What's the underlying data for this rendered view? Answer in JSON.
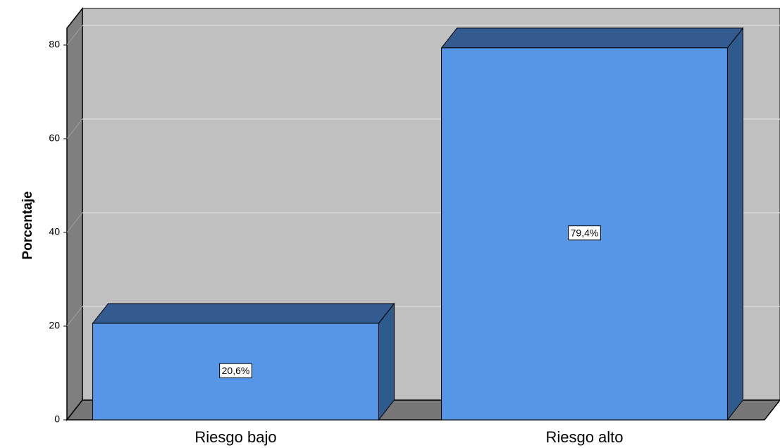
{
  "chart_data": {
    "type": "bar",
    "y_label": "Porcentaje",
    "categories": [
      "Riesgo bajo",
      "Riesgo alto"
    ],
    "values": [
      20.6,
      79.4
    ],
    "value_labels": [
      "20,6%",
      "79,4%"
    ],
    "color": "#5596e6",
    "ylim": [
      0,
      83.6
    ],
    "yticks": [
      0,
      20,
      40,
      60,
      80
    ],
    "grid": true
  }
}
